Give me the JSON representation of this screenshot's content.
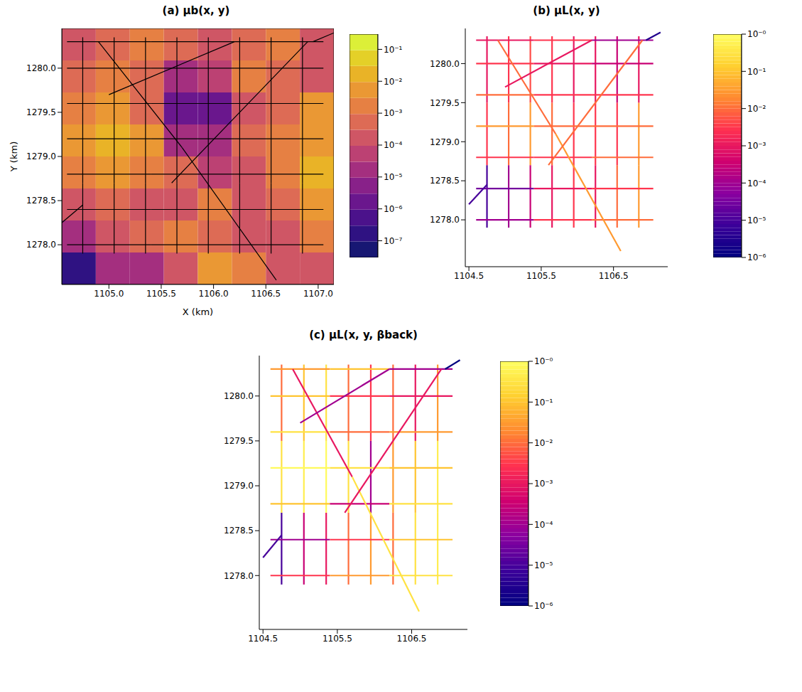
{
  "road_network": {
    "segments": [
      [
        1104.75,
        1277.9,
        1104.75,
        1278.7
      ],
      [
        1104.75,
        1278.7,
        1104.75,
        1279.5
      ],
      [
        1104.75,
        1279.5,
        1104.75,
        1280.35
      ],
      [
        1105.05,
        1277.9,
        1105.05,
        1278.7
      ],
      [
        1105.05,
        1278.7,
        1105.05,
        1279.5
      ],
      [
        1105.05,
        1279.5,
        1105.05,
        1280.35
      ],
      [
        1105.35,
        1277.9,
        1105.35,
        1278.7
      ],
      [
        1105.35,
        1278.7,
        1105.35,
        1279.5
      ],
      [
        1105.35,
        1279.5,
        1105.35,
        1280.35
      ],
      [
        1105.65,
        1277.9,
        1105.65,
        1278.7
      ],
      [
        1105.65,
        1278.7,
        1105.65,
        1279.5
      ],
      [
        1105.65,
        1279.5,
        1105.65,
        1280.35
      ],
      [
        1105.95,
        1277.9,
        1105.95,
        1278.7
      ],
      [
        1105.95,
        1278.7,
        1105.95,
        1279.5
      ],
      [
        1105.95,
        1279.5,
        1105.95,
        1280.35
      ],
      [
        1106.25,
        1277.9,
        1106.25,
        1278.7
      ],
      [
        1106.25,
        1278.7,
        1106.25,
        1279.5
      ],
      [
        1106.25,
        1279.5,
        1106.25,
        1280.35
      ],
      [
        1106.55,
        1277.9,
        1106.55,
        1278.7
      ],
      [
        1106.55,
        1278.7,
        1106.55,
        1279.5
      ],
      [
        1106.55,
        1279.5,
        1106.55,
        1280.35
      ],
      [
        1106.85,
        1277.9,
        1106.85,
        1278.7
      ],
      [
        1106.85,
        1278.7,
        1106.85,
        1279.5
      ],
      [
        1106.85,
        1279.5,
        1106.85,
        1280.35
      ],
      [
        1104.6,
        1278,
        1105.4,
        1278
      ],
      [
        1105.4,
        1278,
        1106.2,
        1278
      ],
      [
        1106.2,
        1278,
        1107.05,
        1278
      ],
      [
        1104.6,
        1278.4,
        1105.4,
        1278.4
      ],
      [
        1105.4,
        1278.4,
        1106.2,
        1278.4
      ],
      [
        1106.2,
        1278.4,
        1107.05,
        1278.4
      ],
      [
        1104.6,
        1278.8,
        1105.4,
        1278.8
      ],
      [
        1105.4,
        1278.8,
        1106.2,
        1278.8
      ],
      [
        1106.2,
        1278.8,
        1107.05,
        1278.8
      ],
      [
        1104.6,
        1279.2,
        1105.4,
        1279.2
      ],
      [
        1105.4,
        1279.2,
        1106.2,
        1279.2
      ],
      [
        1106.2,
        1279.2,
        1107.05,
        1279.2
      ],
      [
        1104.6,
        1279.6,
        1105.4,
        1279.6
      ],
      [
        1105.4,
        1279.6,
        1106.2,
        1279.6
      ],
      [
        1106.2,
        1279.6,
        1107.05,
        1279.6
      ],
      [
        1104.6,
        1280,
        1105.4,
        1280
      ],
      [
        1105.4,
        1280,
        1106.2,
        1280
      ],
      [
        1106.2,
        1280,
        1107.05,
        1280
      ],
      [
        1104.6,
        1280.3,
        1105.4,
        1280.3
      ],
      [
        1105.4,
        1280.3,
        1106.2,
        1280.3
      ],
      [
        1106.2,
        1280.3,
        1107.05,
        1280.3
      ],
      [
        1104.9,
        1280.3,
        1105.7,
        1279.1
      ],
      [
        1105.7,
        1279.1,
        1106.6,
        1277.6
      ],
      [
        1105,
        1279.7,
        1106.2,
        1280.3
      ],
      [
        1105.6,
        1278.7,
        1106.9,
        1280.3
      ],
      [
        1104.5,
        1278.2,
        1104.75,
        1278.45
      ],
      [
        1106.95,
        1280.3,
        1107.15,
        1280.4
      ]
    ]
  },
  "chart_data": [
    {
      "type": "heatmap",
      "title": "(a) μb(x, y)",
      "xlabel": "X (km)",
      "ylabel": "Y (km)",
      "xlim": [
        1104.55,
        1107.15
      ],
      "ylim": [
        1277.55,
        1280.45
      ],
      "xticks": [
        {
          "value": 1105,
          "label": "1105.0"
        },
        1105.5,
        {
          "value": 1106,
          "label": "1106.0"
        },
        1106.5,
        {
          "value": 1107,
          "label": "1107.0"
        }
      ],
      "yticks": [
        {
          "value": 1278,
          "label": "1278.0"
        },
        1278.5,
        {
          "value": 1279,
          "label": "1279.0"
        },
        1279.5,
        {
          "value": 1280,
          "label": "1280.0"
        }
      ],
      "cell_x": [
        1104.55,
        1104.875,
        1105.2,
        1105.525,
        1105.85,
        1106.175,
        1106.5,
        1106.825,
        1107.15
      ],
      "cell_y": [
        1277.55,
        1277.9125,
        1278.275,
        1278.6375,
        1279.0,
        1279.3625,
        1279.725,
        1280.0875,
        1280.45
      ],
      "cells": [
        [
          1e-07,
          1e-05,
          1e-05,
          0.0001,
          0.003,
          0.001,
          0.0001,
          0.0001
        ],
        [
          1e-05,
          0.0001,
          0.0003,
          0.001,
          0.0003,
          0.0001,
          0.0001,
          0.001
        ],
        [
          0.0001,
          0.0003,
          0.0001,
          0.0001,
          0.001,
          0.0001,
          0.0003,
          0.003
        ],
        [
          0.001,
          0.003,
          0.001,
          0.0003,
          3e-05,
          0.0001,
          0.001,
          0.01
        ],
        [
          0.003,
          0.01,
          0.003,
          1e-05,
          1e-05,
          0.0003,
          0.001,
          0.003
        ],
        [
          0.001,
          0.003,
          0.0003,
          1e-06,
          1e-06,
          0.0001,
          0.0003,
          0.003
        ],
        [
          0.0003,
          0.001,
          0.0003,
          1e-05,
          3e-05,
          0.001,
          0.0003,
          0.0001
        ],
        [
          0.0001,
          0.0003,
          0.001,
          0.0003,
          0.0001,
          0.0003,
          0.001,
          0.0001
        ]
      ],
      "colorbar_range": [
        3e-08,
        0.3
      ],
      "colorbar_ticks": [
        {
          "value": 0.1,
          "label": "10⁻¹"
        },
        {
          "value": 0.01,
          "label": "10⁻²"
        },
        {
          "value": 0.001,
          "label": "10⁻³"
        },
        {
          "value": 0.0001,
          "label": "10⁻⁴"
        },
        {
          "value": 1e-05,
          "label": "10⁻⁵"
        },
        {
          "value": 1e-06,
          "label": "10⁻⁶"
        },
        {
          "value": 1e-07,
          "label": "10⁻⁷"
        }
      ]
    },
    {
      "type": "network",
      "title": "(b) μL(x, y)",
      "xlim": [
        1104.45,
        1107.25
      ],
      "ylim": [
        1277.4,
        1280.45
      ],
      "xticks": [
        1104.5,
        1105.5,
        1106.5
      ],
      "yticks": [
        {
          "value": 1278,
          "label": "1278.0"
        },
        1278.5,
        {
          "value": 1279,
          "label": "1279.0"
        },
        1279.5,
        {
          "value": 1280,
          "label": "1280.0"
        }
      ],
      "segment_values": [
        1e-05,
        0.003,
        0.001,
        0.0001,
        0.01,
        0.003,
        0.0003,
        0.03,
        0.005,
        0.001,
        0.01,
        0.003,
        0.003,
        0.003,
        0.001,
        0.001,
        0.003,
        0.001,
        0.01,
        0.003,
        0.0003,
        0.03,
        0.03,
        0.001,
        0.0001,
        0.003,
        0.01,
        3e-05,
        0.001,
        0.003,
        0.003,
        0.003,
        0.01,
        0.03,
        0.01,
        0.01,
        0.01,
        0.003,
        0.003,
        0.003,
        0.001,
        0.0003,
        0.001,
        0.003,
        0.0001,
        0.01,
        0.03,
        0.001,
        0.01,
        1e-05,
        3e-06
      ],
      "colorbar_range": [
        1e-06,
        1
      ],
      "colorbar_ticks": [
        {
          "value": 1,
          "label": "10⁻⁰"
        },
        {
          "value": 0.1,
          "label": "10⁻¹"
        },
        {
          "value": 0.01,
          "label": "10⁻²"
        },
        {
          "value": 0.001,
          "label": "10⁻³"
        },
        {
          "value": 0.0001,
          "label": "10⁻⁴"
        },
        {
          "value": 1e-05,
          "label": "10⁻⁵"
        },
        {
          "value": 1e-06,
          "label": "10⁻⁶"
        }
      ]
    },
    {
      "type": "network",
      "title": "(c) μL(x, y, βback)",
      "xlim": [
        1104.45,
        1107.25
      ],
      "ylim": [
        1277.4,
        1280.45
      ],
      "xticks": [
        1104.5,
        1105.5,
        1106.5
      ],
      "yticks": [
        {
          "value": 1278,
          "label": "1278.0"
        },
        1278.5,
        {
          "value": 1279,
          "label": "1279.0"
        },
        1279.5,
        {
          "value": 1280,
          "label": "1280.0"
        }
      ],
      "segment_values": [
        1e-05,
        0.3,
        0.01,
        0.0003,
        0.5,
        0.1,
        0.001,
        0.8,
        0.3,
        0.01,
        0.3,
        0.01,
        0.03,
        0.0001,
        0.003,
        0.01,
        0.03,
        0.01,
        0.3,
        0.1,
        0.001,
        0.5,
        0.5,
        0.03,
        0.003,
        0.03,
        0.3,
        0.0001,
        0.003,
        0.1,
        0.1,
        0.0003,
        0.3,
        0.8,
        0.3,
        0.1,
        0.3,
        0.01,
        0.03,
        0.1,
        0.003,
        0.001,
        0.03,
        0.1,
        0.0001,
        0.001,
        0.3,
        0.0001,
        0.001,
        1e-05,
        1e-06
      ],
      "colorbar_range": [
        1e-06,
        1
      ],
      "colorbar_ticks": [
        {
          "value": 1,
          "label": "10⁻⁰"
        },
        {
          "value": 0.1,
          "label": "10⁻¹"
        },
        {
          "value": 0.01,
          "label": "10⁻²"
        },
        {
          "value": 0.001,
          "label": "10⁻³"
        },
        {
          "value": 0.0001,
          "label": "10⁻⁴"
        },
        {
          "value": 1e-05,
          "label": "10⁻⁵"
        },
        {
          "value": 1e-06,
          "label": "10⁻⁶"
        }
      ]
    }
  ]
}
